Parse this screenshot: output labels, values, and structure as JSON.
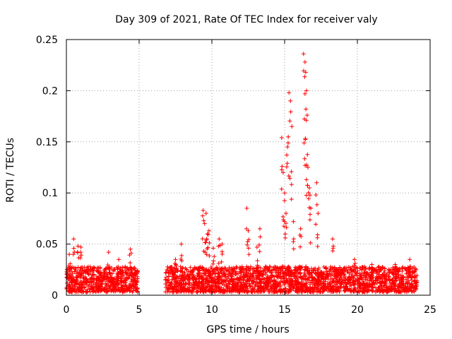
{
  "chart_data": {
    "type": "scatter",
    "title": "Day 309 of 2021, Rate Of TEC Index for receiver valy",
    "xlabel": "GPS time / hours",
    "ylabel": "ROTI / TECUs",
    "xlim": [
      0,
      25
    ],
    "ylim": [
      0,
      0.25
    ],
    "x_ticks": [
      0,
      5,
      10,
      15,
      20,
      25
    ],
    "y_ticks": [
      "0",
      "0.05",
      "0.1",
      "0.15",
      "0.2",
      "0.25"
    ],
    "y_tick_values": [
      0,
      0.05,
      0.1,
      0.15,
      0.2,
      0.25
    ],
    "grid": true,
    "marker": "+",
    "color": "#ff0000",
    "coverage_segments": [
      [
        0.0,
        4.9
      ],
      [
        6.8,
        24.1
      ]
    ],
    "baseline_band": [
      0.003,
      0.028
    ],
    "series": [
      {
        "name": "ROTI",
        "x": [
          0.2,
          0.5,
          0.8,
          1.0,
          2.9,
          3.6,
          4.4,
          7.5,
          7.9,
          9.4,
          9.5,
          9.6,
          9.7,
          9.8,
          10.1,
          10.5,
          10.7,
          12.4,
          12.5,
          13.1,
          13.3,
          14.8,
          14.9,
          15.0,
          15.1,
          15.2,
          15.3,
          15.4,
          15.5,
          15.6,
          16.1,
          16.3,
          16.4,
          16.45,
          16.5,
          16.55,
          16.6,
          16.7,
          16.8,
          17.2,
          17.3,
          18.3,
          19.8,
          21.0,
          22.6,
          23.6
        ],
        "y": [
          0.04,
          0.055,
          0.048,
          0.047,
          0.042,
          0.035,
          0.045,
          0.035,
          0.05,
          0.083,
          0.07,
          0.08,
          0.06,
          0.063,
          0.046,
          0.055,
          0.05,
          0.085,
          0.063,
          0.047,
          0.065,
          0.154,
          0.12,
          0.1,
          0.08,
          0.145,
          0.198,
          0.19,
          0.165,
          0.072,
          0.065,
          0.236,
          0.228,
          0.218,
          0.2,
          0.176,
          0.125,
          0.105,
          0.085,
          0.11,
          0.08,
          0.055,
          0.035,
          0.03,
          0.03,
          0.035
        ]
      }
    ]
  }
}
